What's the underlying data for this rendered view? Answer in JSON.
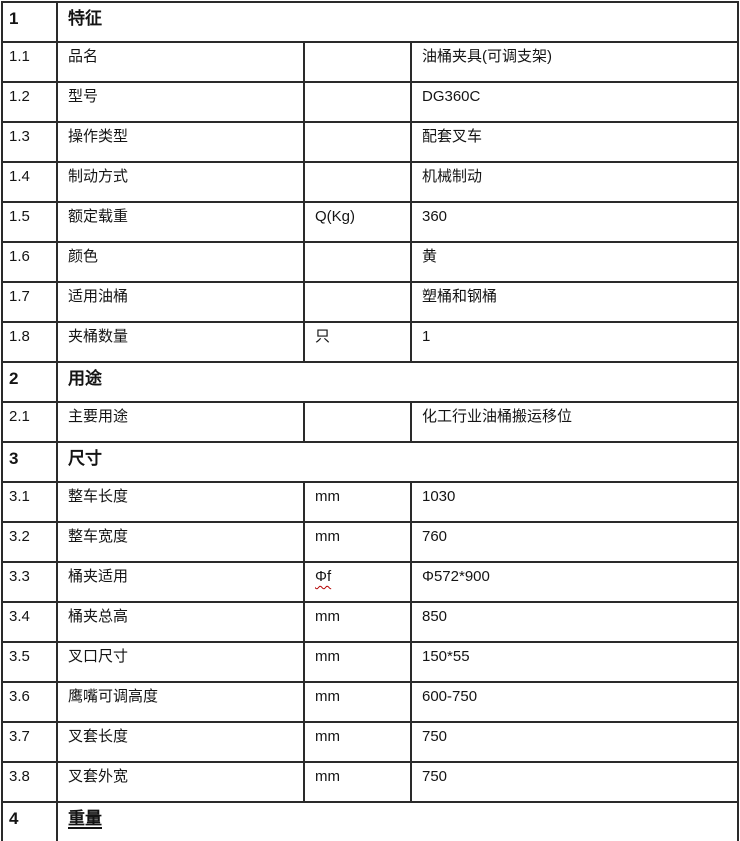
{
  "colors": {
    "background": "#ffffff",
    "border": "#2a2a2a",
    "text": "#141414",
    "spellcheck_underline": "#b30000"
  },
  "table": {
    "rows": [
      {
        "type": "section",
        "index": "1",
        "title": "特征",
        "underline": false
      },
      {
        "type": "item",
        "index": "1.1",
        "name": "品名",
        "unit": "",
        "value": "油桶夹具(可调支架)",
        "unit_spellcheck": false
      },
      {
        "type": "item",
        "index": "1.2",
        "name": "型号",
        "unit": "",
        "value": "DG360C",
        "unit_spellcheck": false
      },
      {
        "type": "item",
        "index": "1.3",
        "name": "操作类型",
        "unit": "",
        "value": "配套叉车",
        "unit_spellcheck": false
      },
      {
        "type": "item",
        "index": "1.4",
        "name": "制动方式",
        "unit": "",
        "value": "机械制动",
        "unit_spellcheck": false
      },
      {
        "type": "item",
        "index": "1.5",
        "name": "额定载重",
        "unit": "Q(Kg)",
        "value": "360",
        "unit_spellcheck": false
      },
      {
        "type": "item",
        "index": "1.6",
        "name": "颜色",
        "unit": "",
        "value": "黄",
        "unit_spellcheck": false
      },
      {
        "type": "item",
        "index": "1.7",
        "name": "适用油桶",
        "unit": "",
        "value": "塑桶和钢桶",
        "unit_spellcheck": false
      },
      {
        "type": "item",
        "index": "1.8",
        "name": "夹桶数量",
        "unit": "只",
        "value": "1",
        "unit_spellcheck": false
      },
      {
        "type": "section",
        "index": "2",
        "title": "用途",
        "underline": false
      },
      {
        "type": "item",
        "index": "2.1",
        "name": "主要用途",
        "unit": "",
        "value": "化工行业油桶搬运移位",
        "unit_spellcheck": false
      },
      {
        "type": "section",
        "index": "3",
        "title": "尺寸",
        "underline": false
      },
      {
        "type": "item",
        "index": "3.1",
        "name": "整车长度",
        "unit": "mm",
        "value": "1030",
        "unit_spellcheck": false
      },
      {
        "type": "item",
        "index": "3.2",
        "name": "整车宽度",
        "unit": "mm",
        "value": "760",
        "unit_spellcheck": false
      },
      {
        "type": "item",
        "index": "3.3",
        "name": "桶夹适用",
        "unit": "Φf",
        "value": "Φ572*900",
        "unit_spellcheck": true
      },
      {
        "type": "item",
        "index": "3.4",
        "name": "桶夹总高",
        "unit": "mm",
        "value": "850",
        "unit_spellcheck": false
      },
      {
        "type": "item",
        "index": "3.5",
        "name": "叉口尺寸",
        "unit": "mm",
        "value": "150*55",
        "unit_spellcheck": false
      },
      {
        "type": "item",
        "index": "3.6",
        "name": "鹰嘴可调高度",
        "unit": "mm",
        "value": "600-750",
        "unit_spellcheck": false
      },
      {
        "type": "item",
        "index": "3.7",
        "name": "叉套长度",
        "unit": "mm",
        "value": "750",
        "unit_spellcheck": false
      },
      {
        "type": "item",
        "index": "3.8",
        "name": "叉套外宽",
        "unit": "mm",
        "value": "750",
        "unit_spellcheck": false
      },
      {
        "type": "section",
        "index": "4",
        "title": "重量",
        "underline": true
      }
    ]
  }
}
